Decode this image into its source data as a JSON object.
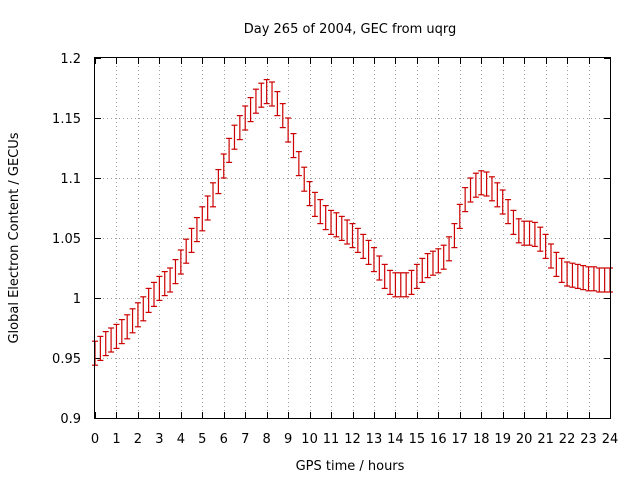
{
  "chart_data": {
    "type": "scatter",
    "title": "Day 265 of 2004, GEC from uqrg",
    "xlabel": "GPS time / hours",
    "ylabel": "Global Electron Content / GECUs",
    "xlim": [
      0,
      24
    ],
    "ylim": [
      0.9,
      1.2
    ],
    "grid": true,
    "legend": "none",
    "color": "#cc0000",
    "x_ticks": [
      "0",
      "1",
      "2",
      "3",
      "4",
      "5",
      "6",
      "7",
      "8",
      "9",
      "10",
      "11",
      "12",
      "13",
      "14",
      "15",
      "16",
      "17",
      "18",
      "19",
      "20",
      "21",
      "22",
      "23",
      "24"
    ],
    "y_ticks": [
      "0.9",
      "0.95",
      "1",
      "1.05",
      "1.1",
      "1.15",
      "1.2"
    ],
    "error_bar": 0.01,
    "series": [
      {
        "x": [
          0,
          0.25,
          0.5,
          0.75,
          1,
          1.25,
          1.5,
          1.75,
          2,
          2.25,
          2.5,
          2.75,
          3,
          3.25,
          3.5,
          3.75,
          4,
          4.25,
          4.5,
          4.75,
          5,
          5.25,
          5.5,
          5.75,
          6,
          6.25,
          6.5,
          6.75,
          7,
          7.25,
          7.5,
          7.75,
          8,
          8.25,
          8.5,
          8.75,
          9,
          9.25,
          9.5,
          9.75,
          10,
          10.25,
          10.5,
          10.75,
          11,
          11.25,
          11.5,
          11.75,
          12,
          12.25,
          12.5,
          12.75,
          13,
          13.25,
          13.5,
          13.75,
          14,
          14.25,
          14.5,
          14.75,
          15,
          15.25,
          15.5,
          15.75,
          16,
          16.25,
          16.5,
          16.75,
          17,
          17.25,
          17.5,
          17.75,
          18,
          18.25,
          18.5,
          18.75,
          19,
          19.25,
          19.5,
          19.75,
          20,
          20.25,
          20.5,
          20.75,
          21,
          21.25,
          21.5,
          21.75,
          22,
          22.25,
          22.5,
          22.75,
          23,
          23.25,
          23.5,
          23.75,
          24
        ],
        "y": [
          0.954,
          0.958,
          0.962,
          0.965,
          0.968,
          0.972,
          0.976,
          0.981,
          0.986,
          0.991,
          0.998,
          1.003,
          1.008,
          1.012,
          1.015,
          1.022,
          1.03,
          1.039,
          1.048,
          1.057,
          1.066,
          1.075,
          1.086,
          1.097,
          1.11,
          1.123,
          1.134,
          1.142,
          1.15,
          1.157,
          1.164,
          1.169,
          1.172,
          1.17,
          1.162,
          1.152,
          1.14,
          1.127,
          1.112,
          1.099,
          1.087,
          1.078,
          1.072,
          1.067,
          1.063,
          1.061,
          1.058,
          1.055,
          1.052,
          1.048,
          1.043,
          1.038,
          1.032,
          1.025,
          1.018,
          1.013,
          1.011,
          1.011,
          1.011,
          1.013,
          1.018,
          1.023,
          1.027,
          1.029,
          1.031,
          1.034,
          1.041,
          1.052,
          1.068,
          1.082,
          1.09,
          1.094,
          1.096,
          1.095,
          1.091,
          1.086,
          1.08,
          1.072,
          1.063,
          1.056,
          1.054,
          1.054,
          1.053,
          1.049,
          1.043,
          1.035,
          1.028,
          1.023,
          1.02,
          1.019,
          1.018,
          1.017,
          1.016,
          1.016,
          1.015,
          1.015,
          1.015
        ]
      }
    ]
  }
}
